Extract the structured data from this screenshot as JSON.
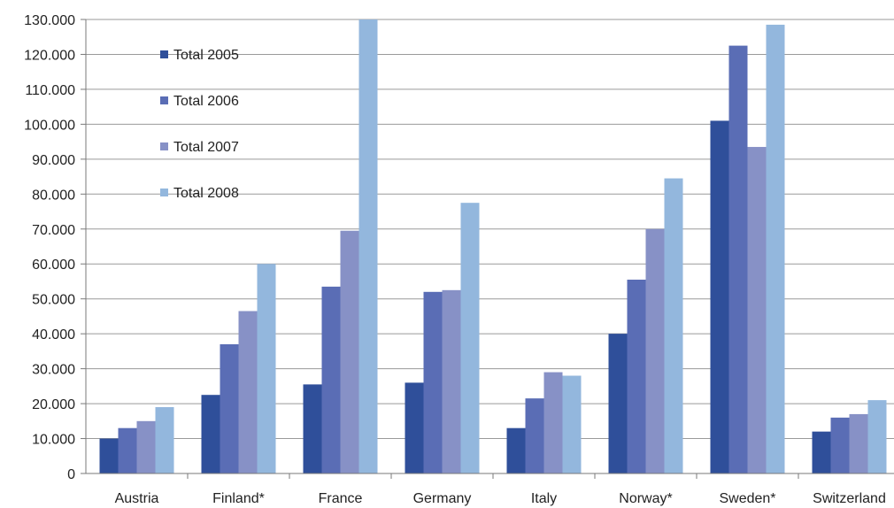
{
  "chart_data": {
    "type": "bar",
    "categories": [
      "Austria",
      "Finland*",
      "France",
      "Germany",
      "Italy",
      "Norway*",
      "Sweden*",
      "Switzerland"
    ],
    "series": [
      {
        "name": "Total 2005",
        "color": "#2f4f9a",
        "values": [
          10000,
          22500,
          25500,
          26000,
          13000,
          40000,
          101000,
          12000
        ]
      },
      {
        "name": "Total 2006",
        "color": "#5a6db5",
        "values": [
          13000,
          37000,
          53500,
          52000,
          21500,
          55500,
          122500,
          16000
        ]
      },
      {
        "name": "Total 2007",
        "color": "#8791c6",
        "values": [
          15000,
          46500,
          69500,
          52500,
          29000,
          70000,
          93500,
          17000
        ]
      },
      {
        "name": "Total 2008",
        "color": "#93b7dd",
        "values": [
          19000,
          60000,
          130000,
          77500,
          28000,
          84500,
          128500,
          21000
        ]
      }
    ],
    "ylim": [
      0,
      130000
    ],
    "y_ticks": [
      "0",
      "10.000",
      "20.000",
      "30.000",
      "40.000",
      "50.000",
      "60.000",
      "70.000",
      "80.000",
      "90.000",
      "100.000",
      "110.000",
      "120.000",
      "130.000"
    ],
    "y_tick_values": [
      0,
      10000,
      20000,
      30000,
      40000,
      50000,
      60000,
      70000,
      80000,
      90000,
      100000,
      110000,
      120000,
      130000
    ],
    "grid": true,
    "legend_position": "top-left",
    "title": "",
    "xlabel": "",
    "ylabel": ""
  }
}
